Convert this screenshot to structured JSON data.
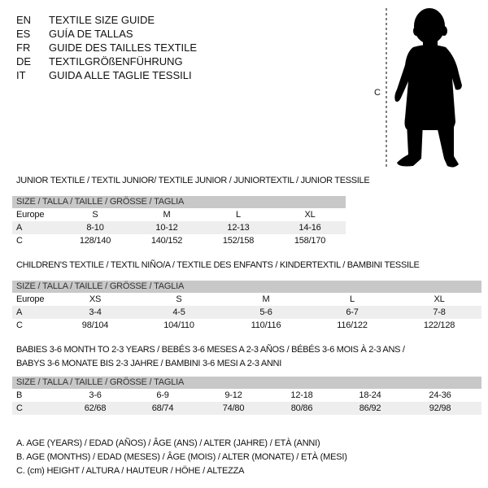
{
  "title_lines": [
    {
      "code": "EN",
      "text": "TEXTILE SIZE GUIDE"
    },
    {
      "code": "ES",
      "text": "GUÍA DE TALLAS"
    },
    {
      "code": "FR",
      "text": "GUIDE DES TAILLES TEXTILE"
    },
    {
      "code": "DE",
      "text": "TEXTILGRÖßENFÜHRUNG"
    },
    {
      "code": "IT",
      "text": "GUIDA ALLE TAGLIE TESSILI"
    }
  ],
  "figure": {
    "measure_label": "C"
  },
  "junior": {
    "heading": "JUNIOR TEXTILE / TEXTIL JUNIOR/ TEXTILE JUNIOR / JUNIORTEXTIL / JUNIOR TESSILE",
    "header": "SIZE / TALLA / TAILLE / GRÖSSE / TAGLIA",
    "rows": [
      {
        "label": "Europe",
        "cells": [
          "S",
          "M",
          "L",
          "XL"
        ]
      },
      {
        "label": "A",
        "cells": [
          "8-10",
          "10-12",
          "12-13",
          "14-16"
        ]
      },
      {
        "label": "C",
        "cells": [
          "128/140",
          "140/152",
          "152/158",
          "158/170"
        ]
      }
    ]
  },
  "children": {
    "heading": "CHILDREN'S TEXTILE / TEXTIL NIÑO/A / TEXTILE DES ENFANTS / KINDERTEXTIL / BAMBINI TESSILE",
    "header": "SIZE / TALLA / TAILLE / GRÖSSE / TAGLIA",
    "rows": [
      {
        "label": "Europe",
        "cells": [
          "XS",
          "S",
          "M",
          "L",
          "XL"
        ]
      },
      {
        "label": "A",
        "cells": [
          "3-4",
          "4-5",
          "5-6",
          "6-7",
          "7-8"
        ]
      },
      {
        "label": "C",
        "cells": [
          "98/104",
          "104/110",
          "110/116",
          "116/122",
          "122/128"
        ]
      }
    ]
  },
  "babies": {
    "heading_1": "BABIES 3-6 MONTH TO 2-3 YEARS / BEBÉS 3-6 MESES A 2-3 AÑOS / BÉBÉS 3-6 MOIS À 2-3 ANS /",
    "heading_2": "BABYS 3-6 MONATE BIS 2-3 JAHRE / BAMBINI 3-6 MESI A 2-3 ANNI",
    "header": "SIZE / TALLA / TAILLE / GRÖSSE / TAGLIA",
    "rows": [
      {
        "label": "B",
        "cells": [
          "3-6",
          "6-9",
          "9-12",
          "12-18",
          "18-24",
          "24-36"
        ]
      },
      {
        "label": "C",
        "cells": [
          "62/68",
          "68/74",
          "74/80",
          "80/86",
          "86/92",
          "92/98"
        ]
      }
    ]
  },
  "legend": [
    "A. AGE (YEARS) / EDAD (AÑOS) / ÂGE (ANS) / ALTER (JAHRE) / ETÀ (ANNI)",
    "B. AGE (MONTHS) / EDAD (MESES) / ÂGE (MOIS) / ALTER (MONATE) / ETÀ (MESI)",
    "C. (cm) HEIGHT / ALTURA / HAUTEUR / HÖHE / ALTEZZA"
  ]
}
